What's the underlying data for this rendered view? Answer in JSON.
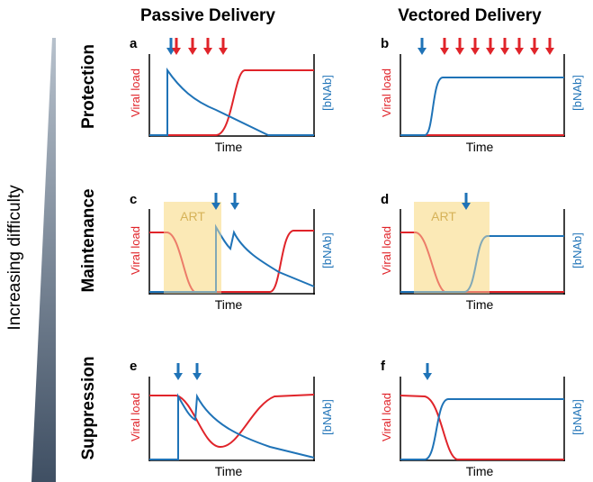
{
  "columns": {
    "left": "Passive Delivery",
    "right": "Vectored Delivery"
  },
  "rows": {
    "top": "Protection",
    "middle": "Maintenance",
    "bottom": "Suppression"
  },
  "difficulty_label": "Increasing difficulty",
  "axes": {
    "x_label": "Time",
    "left_label": "Viral load",
    "right_label": "[bNAb]"
  },
  "panels": {
    "a": "a",
    "b": "b",
    "c": "c",
    "d": "d",
    "e": "e",
    "f": "f"
  },
  "art_label": "ART",
  "colors": {
    "viral": "#e0242a",
    "antibody": "#1f73b7",
    "art_band": "#fbe9b6",
    "art_text": "#b8860b",
    "triangle": "#3f4f63"
  }
}
